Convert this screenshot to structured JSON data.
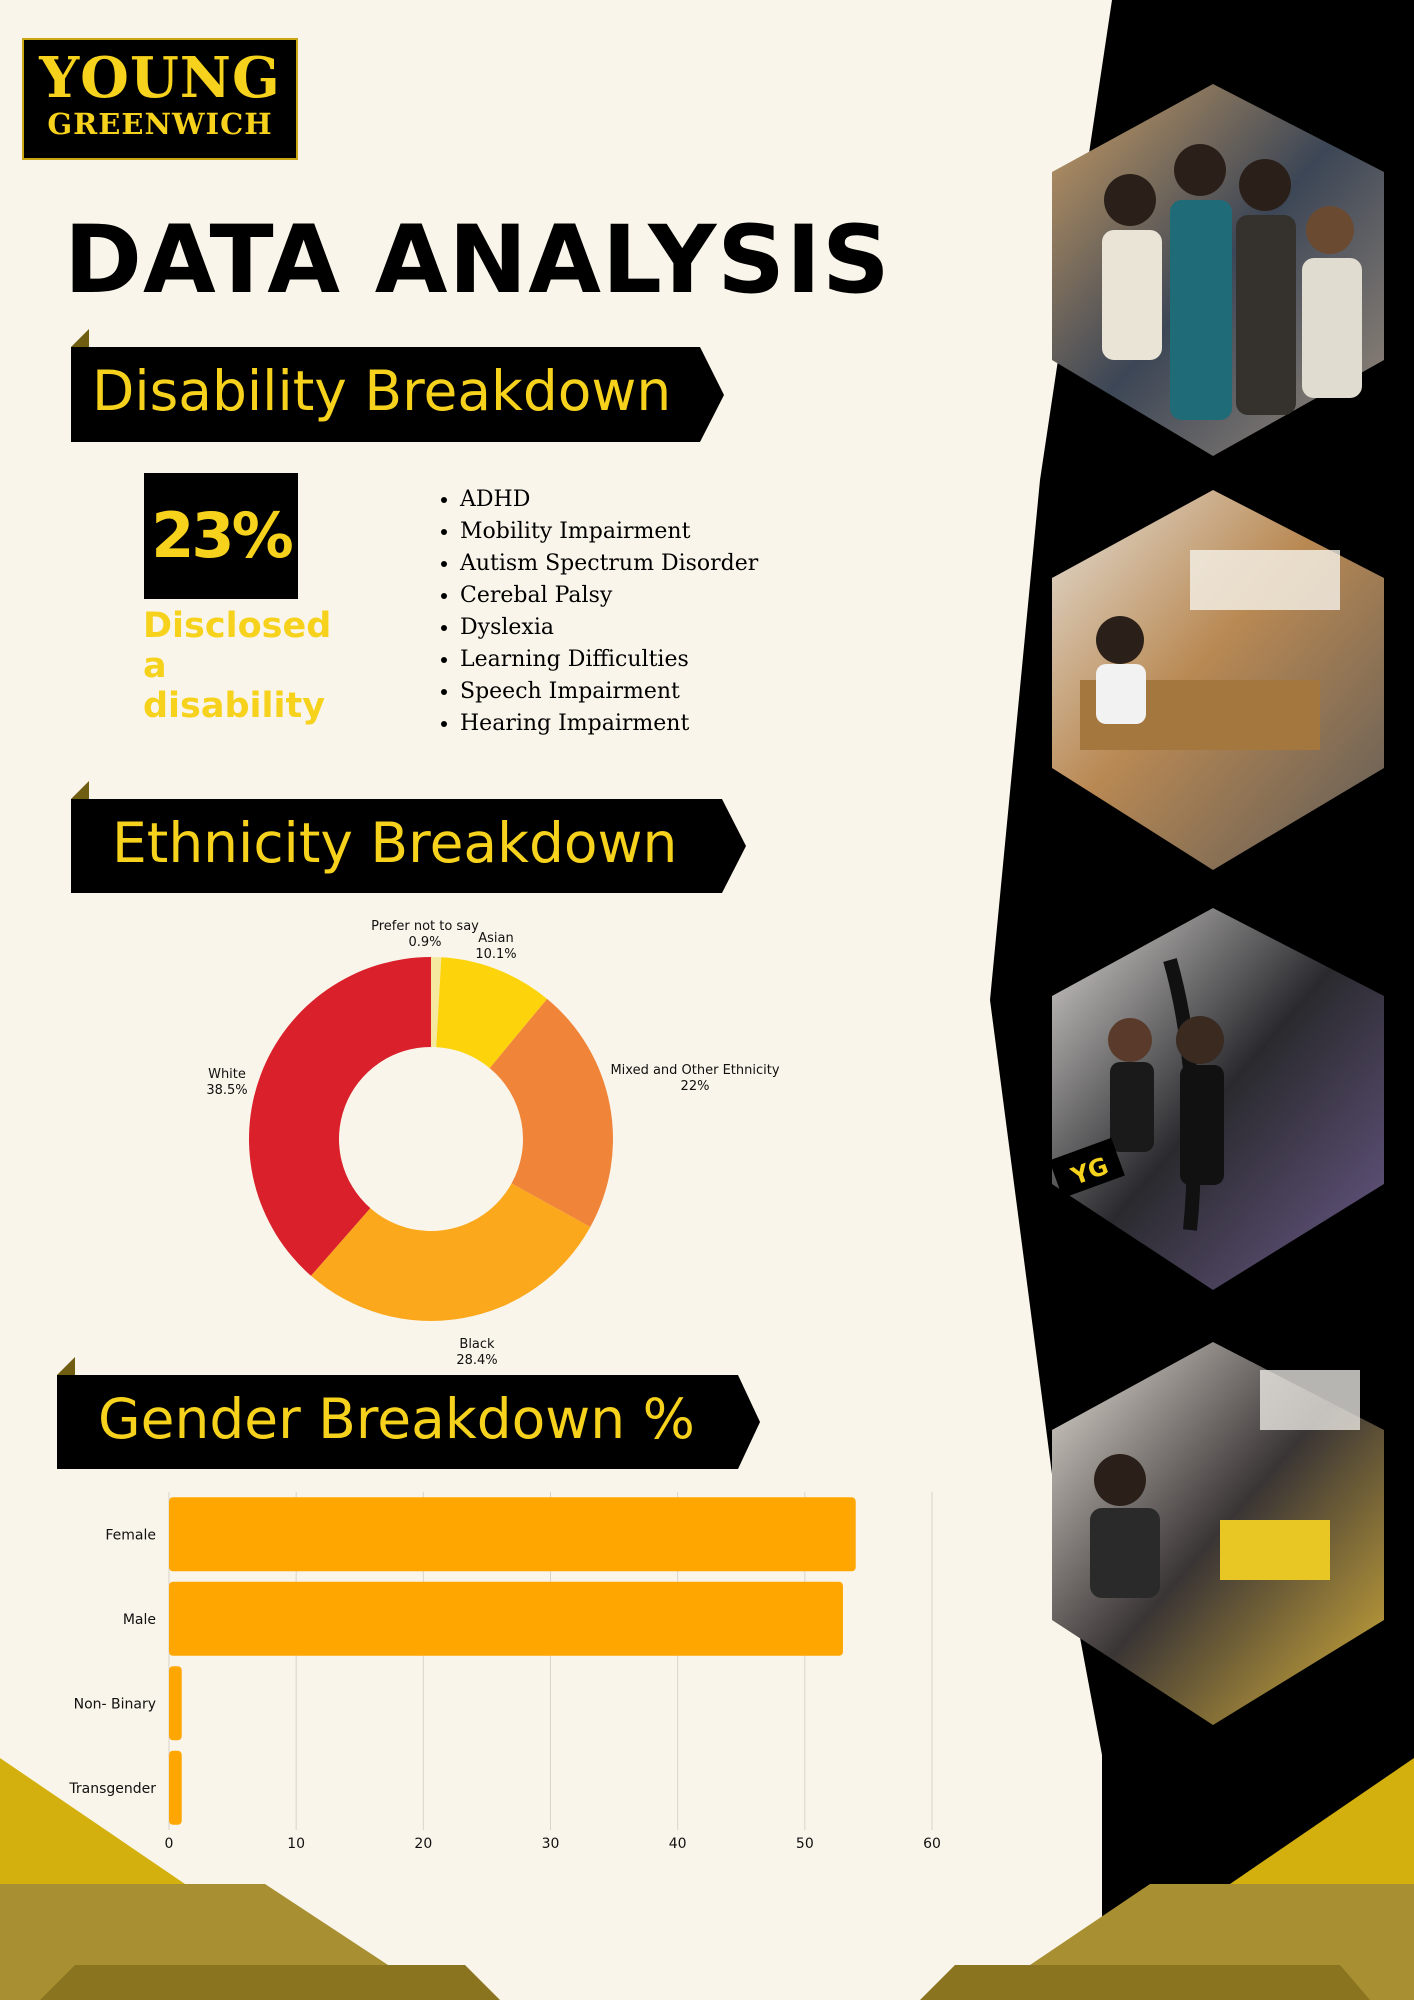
{
  "logo": {
    "line1": "YOUNG",
    "line2": "GREENWICH"
  },
  "page_title": "DATA ANALYSIS",
  "colors": {
    "background": "#faf5ea",
    "black": "#000000",
    "yellow": "#f7d21c",
    "gold": "#d4b00e",
    "olive": "#a88f32",
    "bar": "#ffa600"
  },
  "photos": [
    {
      "icon": "group-photo-icon"
    },
    {
      "icon": "classroom-photo-icon"
    },
    {
      "icon": "aerial-circus-photo-icon",
      "badge": "YG"
    },
    {
      "icon": "craft-activity-photo-icon"
    }
  ],
  "disability": {
    "heading": "Disability Breakdown",
    "stat_value": "23%",
    "stat_caption": [
      "Disclosed",
      "a",
      "disability"
    ],
    "list": [
      "ADHD",
      "Mobility Impairment",
      "Autism Spectrum Disorder",
      "Cerebal Palsy",
      "Dyslexia",
      "Learning Difficulties",
      "Speech Impairment",
      "Hearing Impairment"
    ]
  },
  "ethnicity": {
    "heading": "Ethnicity Breakdown"
  },
  "gender": {
    "heading": "Gender Breakdown %"
  },
  "chart_data": [
    {
      "type": "pie",
      "donut": true,
      "categories": [
        "Prefer not to say",
        "Asian",
        "Mixed and Other Ethnicity",
        "Black",
        "White"
      ],
      "values": [
        0.9,
        10.1,
        22,
        28.4,
        38.5
      ],
      "value_labels": [
        "0.9%",
        "10.1%",
        "22%",
        "28.4%",
        "38.5%"
      ],
      "colors": [
        "#f5e9a0",
        "#fdd40c",
        "#f0853a",
        "#fba81d",
        "#d9202b"
      ]
    },
    {
      "type": "bar",
      "orientation": "horizontal",
      "categories": [
        "Female",
        "Male",
        "Non- Binary",
        "Transgender"
      ],
      "values": [
        54,
        53,
        1,
        1
      ],
      "xlim": [
        0,
        60
      ],
      "xticks": [
        "0",
        "10",
        "20",
        "30",
        "40",
        "50",
        "60"
      ],
      "grid": true,
      "color": "#ffa600"
    }
  ]
}
